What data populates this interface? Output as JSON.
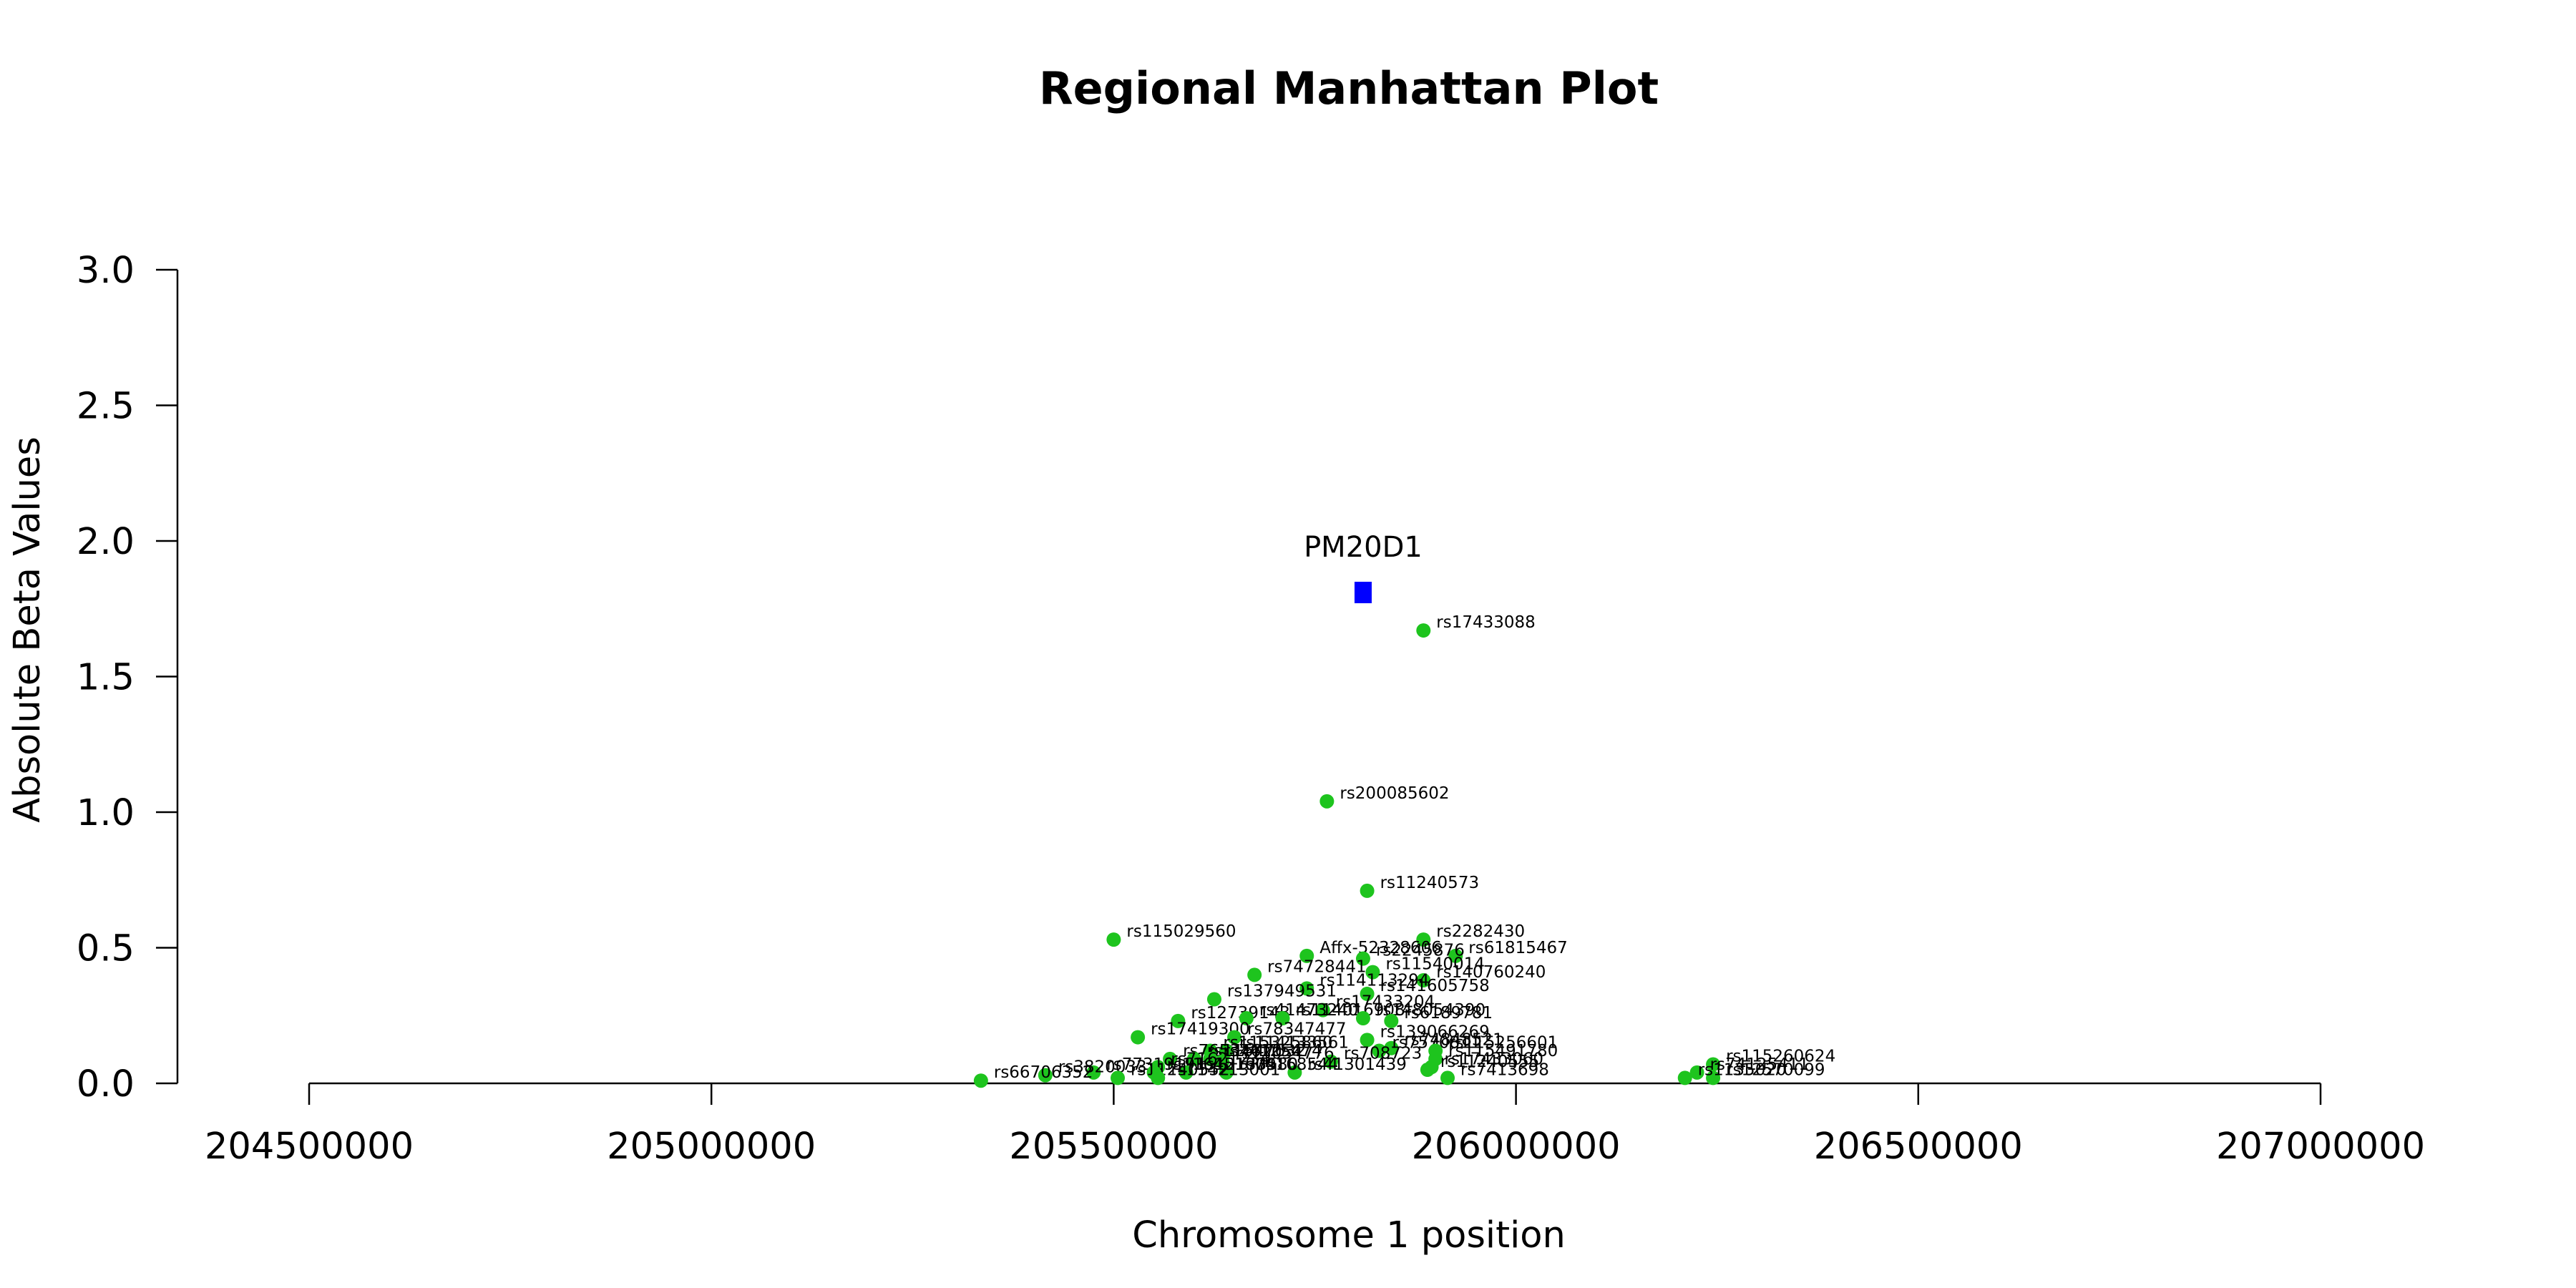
{
  "chart_data": {
    "type": "scatter",
    "title": "Regional Manhattan Plot",
    "xlabel": "Chromosome 1 position",
    "ylabel": "Absolute Beta Values",
    "xlim": [
      204500000,
      207000000
    ],
    "ylim": [
      0,
      3
    ],
    "x_ticks": [
      204500000,
      205000000,
      205500000,
      206000000,
      206500000,
      207000000
    ],
    "y_ticks": [
      "0.0",
      "0.5",
      "1.0",
      "1.5",
      "2.0",
      "2.5",
      "3.0"
    ],
    "grid": false,
    "colors": {
      "snp": "#1ec41e",
      "gene": "#0000ff"
    },
    "genes": [
      {
        "name": "PM20D1",
        "x": 205810000,
        "y": 1.81
      }
    ],
    "snps": [
      {
        "label": "rs17433088",
        "x": 205885000,
        "y": 1.67
      },
      {
        "label": "rs200085602",
        "x": 205765000,
        "y": 1.04
      },
      {
        "label": "rs11240573",
        "x": 205815000,
        "y": 0.71
      },
      {
        "label": "rs115029560",
        "x": 205500000,
        "y": 0.53
      },
      {
        "label": "rs2282430",
        "x": 205885000,
        "y": 0.53
      },
      {
        "label": "rs61815467",
        "x": 205925000,
        "y": 0.47
      },
      {
        "label": "Affx-52328606",
        "x": 205740000,
        "y": 0.47
      },
      {
        "label": "rs2245876",
        "x": 205810000,
        "y": 0.46
      },
      {
        "label": "rs11540014",
        "x": 205822000,
        "y": 0.41
      },
      {
        "label": "rs74728441",
        "x": 205675000,
        "y": 0.4
      },
      {
        "label": "rs140760240",
        "x": 205885000,
        "y": 0.38
      },
      {
        "label": "rs114113294",
        "x": 205740000,
        "y": 0.35
      },
      {
        "label": "rs141605758",
        "x": 205815000,
        "y": 0.33
      },
      {
        "label": "rs137949531",
        "x": 205625000,
        "y": 0.31
      },
      {
        "label": "rs17433204",
        "x": 205760000,
        "y": 0.27
      },
      {
        "label": "rs12739143",
        "x": 205580000,
        "y": 0.23
      },
      {
        "label": "rs41473240",
        "x": 205665000,
        "y": 0.24
      },
      {
        "label": "rs114016908",
        "x": 205710000,
        "y": 0.24
      },
      {
        "label": "rs148054390",
        "x": 205810000,
        "y": 0.24
      },
      {
        "label": "rs6189781",
        "x": 205845000,
        "y": 0.23
      },
      {
        "label": "rs17419300",
        "x": 205530000,
        "y": 0.17
      },
      {
        "label": "rs78347477",
        "x": 205650000,
        "y": 0.17
      },
      {
        "label": "rs139066269",
        "x": 205815000,
        "y": 0.16
      },
      {
        "label": "rs74848521",
        "x": 205845000,
        "y": 0.13
      },
      {
        "label": "rs115325860",
        "x": 205620000,
        "y": 0.12
      },
      {
        "label": "rs114133561",
        "x": 205640000,
        "y": 0.12
      },
      {
        "label": "rs7570811",
        "x": 205830000,
        "y": 0.12
      },
      {
        "label": "rs115256601",
        "x": 205900000,
        "y": 0.12
      },
      {
        "label": "rs76534610",
        "x": 205570000,
        "y": 0.09
      },
      {
        "label": "rs11547632",
        "x": 205600000,
        "y": 0.09
      },
      {
        "label": "rs74125474",
        "x": 205620000,
        "y": 0.09
      },
      {
        "label": "rs115491780",
        "x": 205900000,
        "y": 0.09
      },
      {
        "label": "rs708723",
        "x": 205770000,
        "y": 0.08
      },
      {
        "label": "rs73054776",
        "x": 205635000,
        "y": 0.08
      },
      {
        "label": "rs115260624",
        "x": 206245000,
        "y": 0.07
      },
      {
        "label": "rs17433060",
        "x": 205895000,
        "y": 0.06
      },
      {
        "label": "rs71621234",
        "x": 205555000,
        "y": 0.06
      },
      {
        "label": "rs77319191",
        "x": 205475000,
        "y": 0.04
      },
      {
        "label": "rs41301439",
        "x": 205725000,
        "y": 0.04
      },
      {
        "label": "rs74168544",
        "x": 205640000,
        "y": 0.04
      },
      {
        "label": "rs116451009",
        "x": 205550000,
        "y": 0.04
      },
      {
        "label": "rs12133580",
        "x": 205590000,
        "y": 0.04
      },
      {
        "label": "rs11240555",
        "x": 205890000,
        "y": 0.05
      },
      {
        "label": "rs74125411",
        "x": 206225000,
        "y": 0.04
      },
      {
        "label": "rs3820033",
        "x": 205415000,
        "y": 0.03
      },
      {
        "label": "rs11240552",
        "x": 205505000,
        "y": 0.02
      },
      {
        "label": "rs7413698",
        "x": 205915000,
        "y": 0.02
      },
      {
        "label": "rs12570099",
        "x": 206245000,
        "y": 0.02
      },
      {
        "label": "rs66706352",
        "x": 205335000,
        "y": 0.01
      },
      {
        "label": "rs114213001",
        "x": 205555000,
        "y": 0.02
      },
      {
        "label": "rs1135020",
        "x": 206210000,
        "y": 0.02
      }
    ]
  }
}
